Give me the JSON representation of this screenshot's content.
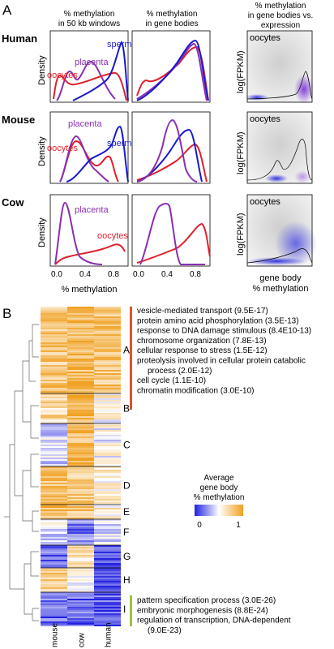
{
  "panel_a": {
    "label": "A",
    "column_headers": [
      [
        "% methylation",
        "in 50 kb windows"
      ],
      [
        "% methylation",
        "in gene bodies"
      ],
      [
        "% methylation",
        "in gene bodies vs.",
        "expression"
      ]
    ],
    "rows": [
      "Human",
      "Mouse",
      "Cow"
    ],
    "y_axis_label": "Density",
    "y_axis_label_right": "log(FPKM)",
    "x_ticks": [
      "0.0",
      "0.4",
      "0.8"
    ],
    "x_axis_label": "% methylation",
    "x_axis_label_right": [
      "gene body",
      "% methylation"
    ],
    "curve_labels": {
      "sperm": "sperm",
      "placenta": "placenta",
      "oocytes": "oocytes"
    }
  },
  "panel_b": {
    "label": "B",
    "clusters": [
      "A",
      "B",
      "C",
      "D",
      "E",
      "F",
      "G",
      "H",
      "I"
    ],
    "columns": [
      "mouse",
      "cow",
      "human"
    ],
    "go_terms_top": [
      "vesicle-mediated transport (9.5E-17)",
      "protein amino acid phosphorylation (3.5E-13)",
      "response to DNA damage stimulous (8.4E10-13)",
      "chromosome organization (7.8E-13)",
      "cellular response to stress (1.5E-12)",
      "proteolysis involved in cellular protein catabolic",
      "process (2.0E-12)",
      "cell cycle (1.1E-10)",
      "chromatin modification (3.0E-10)"
    ],
    "go_terms_bottom": [
      "pattern specification process (3.0E-26)",
      "embryonic morphogenesis (8.8E-24)",
      "regulation of transcription, DNA-dependent",
      "(9.0E-23)"
    ],
    "legend_title": [
      "Average",
      "gene body",
      "% methylation"
    ],
    "legend_ticks": [
      "0",
      "1"
    ]
  }
}
